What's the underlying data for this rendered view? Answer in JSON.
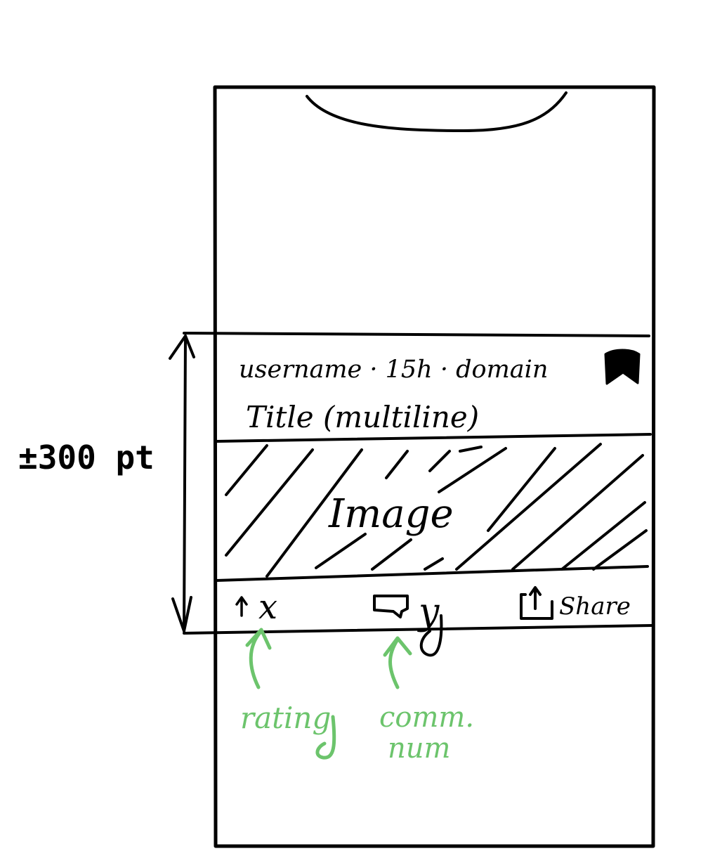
{
  "diagram": {
    "height_annotation": "±300 pt",
    "post_card": {
      "meta_line": "username · 15h · domain",
      "bookmark_icon": "bookmark-icon",
      "title": "Title (multiline)",
      "image_label": "Image",
      "action_bar": {
        "rating_icon": "upvote-arrow-icon",
        "rating_value": "x",
        "comments_icon": "comment-bubble-icon",
        "comments_value": "y",
        "share_icon": "share-icon",
        "share_label": "Share"
      }
    },
    "callouts": {
      "rating": "rating",
      "comments_line1": "comm.",
      "comments_line2": "num"
    },
    "colors": {
      "ink": "#000000",
      "annotation": "#6cc46c"
    }
  }
}
